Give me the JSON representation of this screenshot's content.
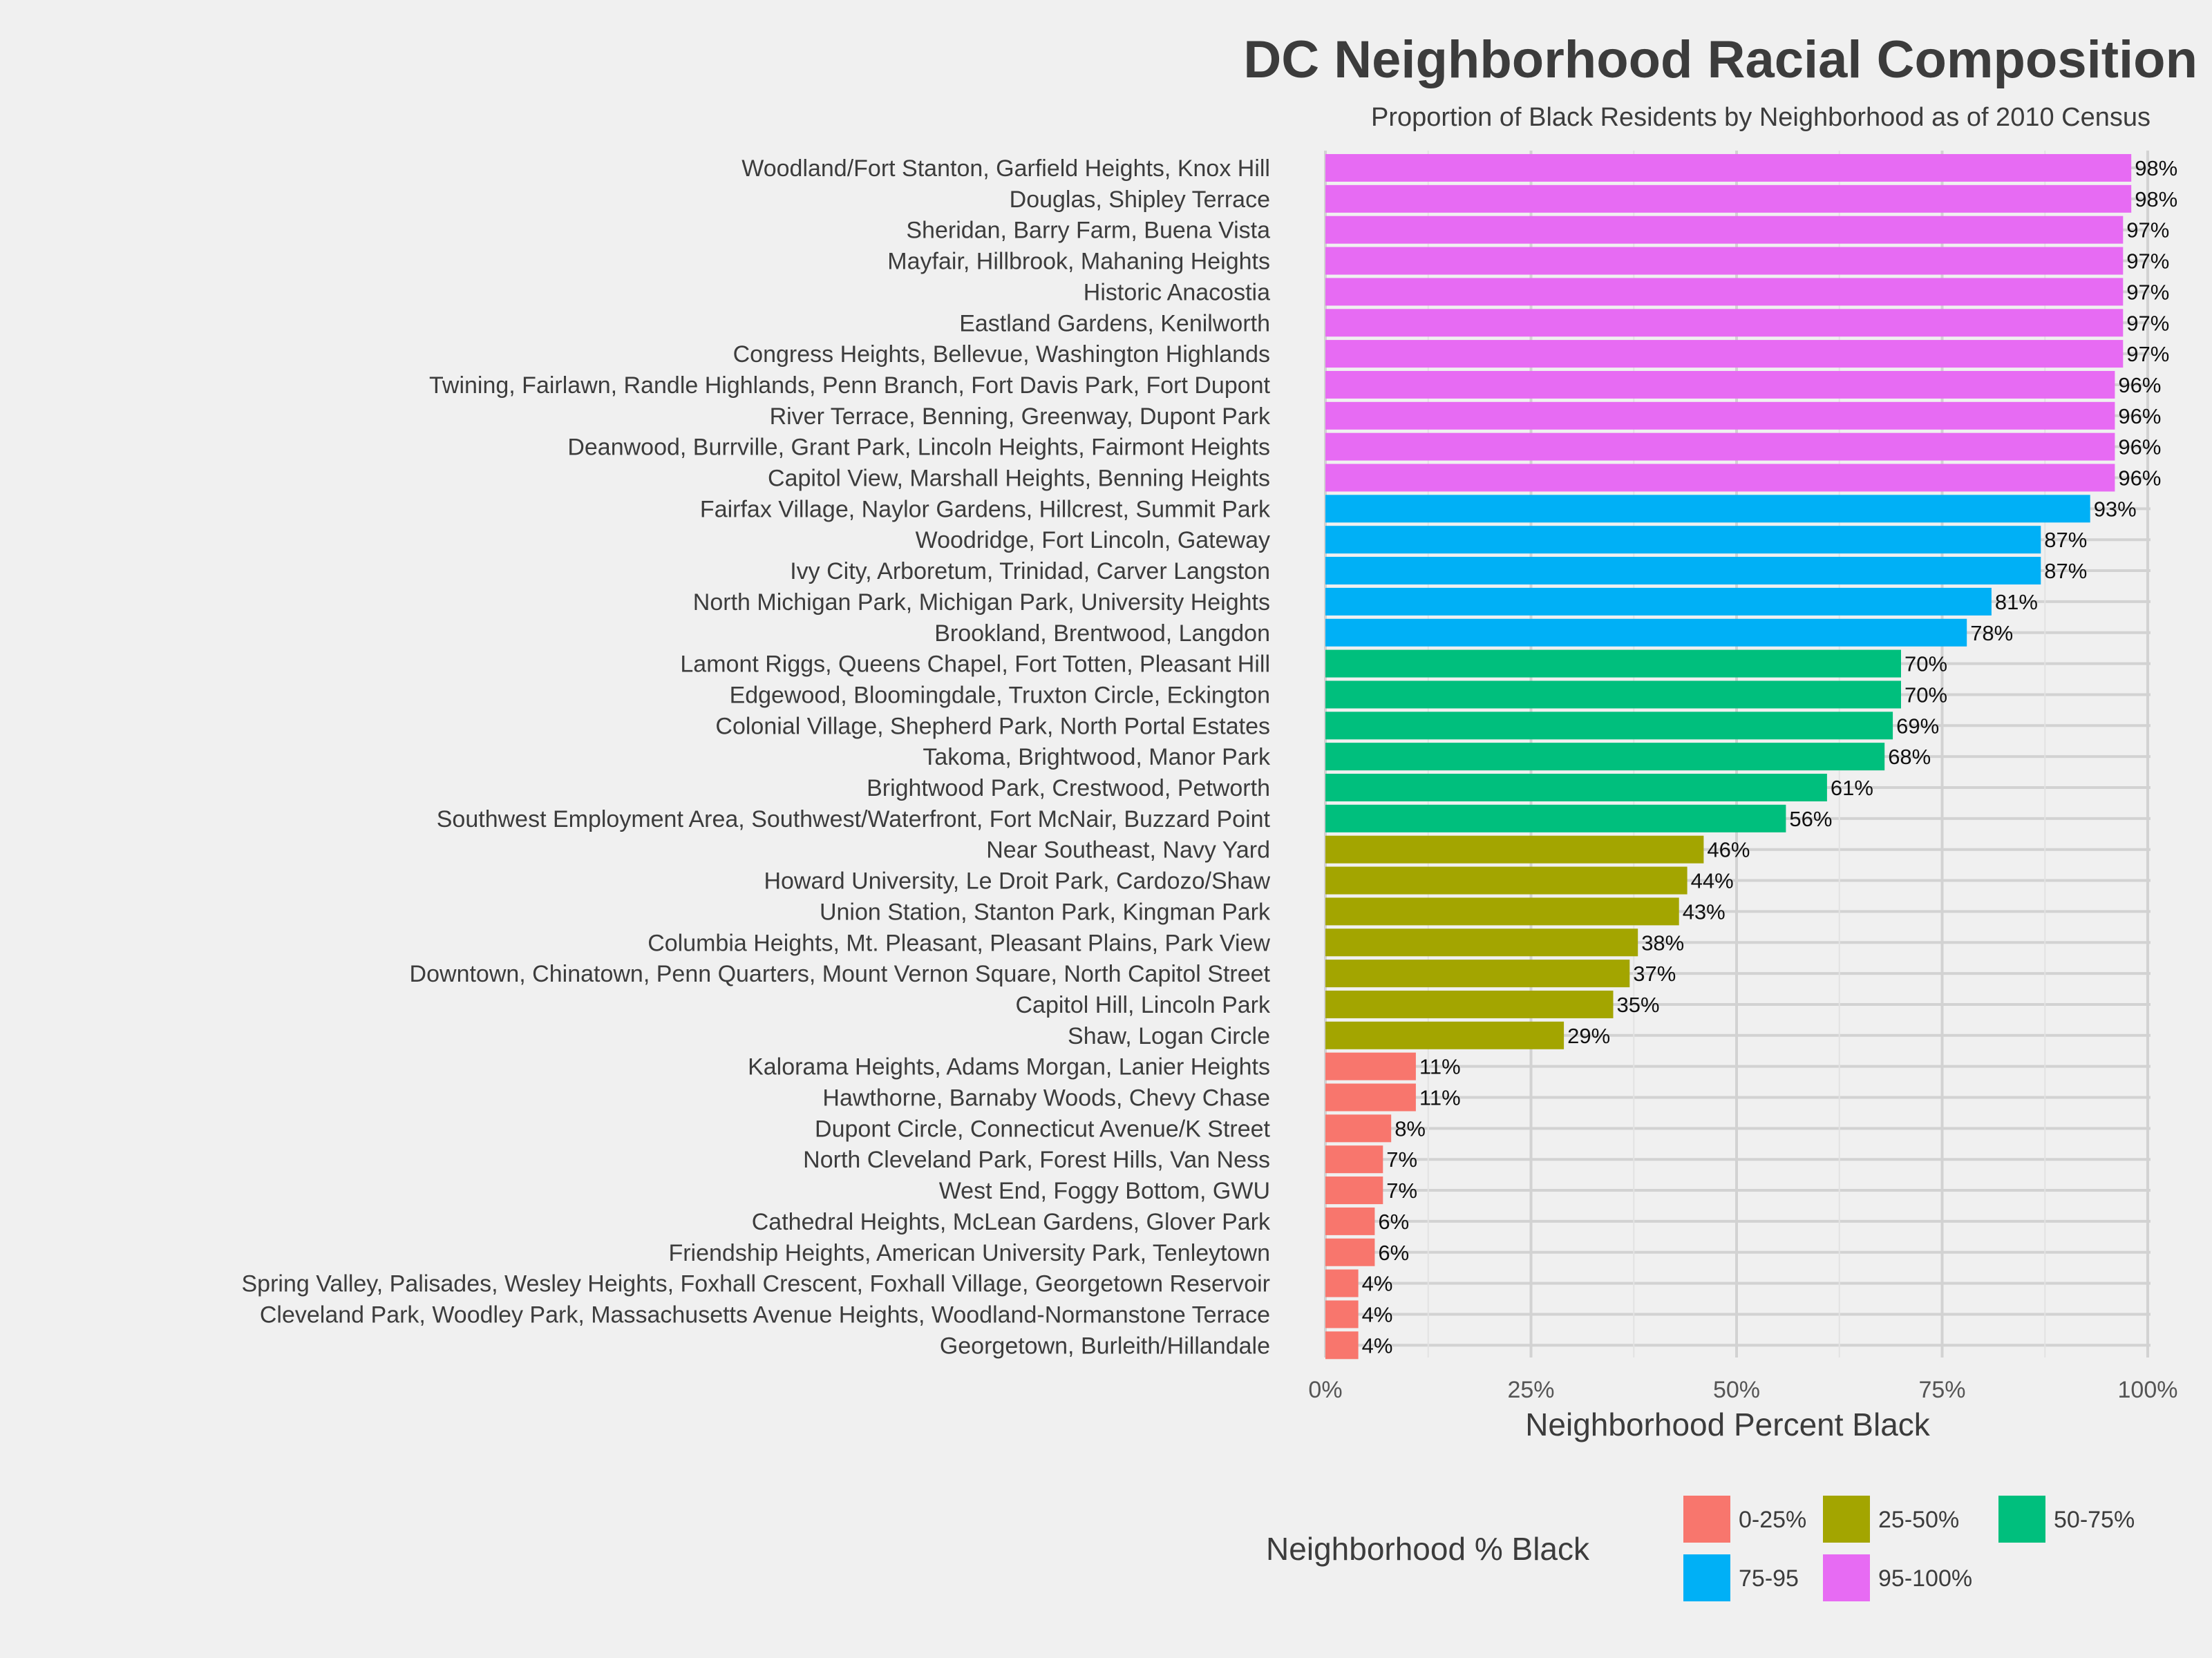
{
  "chart_data": {
    "type": "bar",
    "orientation": "horizontal",
    "title": "DC Neighborhood Racial Composition",
    "subtitle": "Proportion of Black Residents by Neighborhood as of 2010 Census",
    "xlabel": "Neighborhood Percent Black",
    "ylabel": "",
    "xlim": [
      0,
      1
    ],
    "xticks": [
      "0%",
      "25%",
      "50%",
      "75%",
      "100%"
    ],
    "xtick_values": [
      0,
      0.25,
      0.5,
      0.75,
      1.0
    ],
    "legend": {
      "title": "Neighborhood % Black",
      "placement": "bottom",
      "entries": [
        {
          "label": "0-25%",
          "color": "#f8766d"
        },
        {
          "label": "25-50%",
          "color": "#a3a500"
        },
        {
          "label": "50-75%",
          "color": "#00bf7d"
        },
        {
          "label": "75-95",
          "color": "#00b0f6"
        },
        {
          "label": "95-100%",
          "color": "#e76bf3"
        }
      ]
    },
    "bars": [
      {
        "name": "Woodland/Fort Stanton, Garfield Heights, Knox Hill",
        "value": 0.98,
        "label": "98%",
        "group": "95-100%"
      },
      {
        "name": "Douglas, Shipley Terrace",
        "value": 0.98,
        "label": "98%",
        "group": "95-100%"
      },
      {
        "name": "Sheridan, Barry Farm, Buena Vista",
        "value": 0.97,
        "label": "97%",
        "group": "95-100%"
      },
      {
        "name": "Mayfair, Hillbrook, Mahaning Heights",
        "value": 0.97,
        "label": "97%",
        "group": "95-100%"
      },
      {
        "name": "Historic Anacostia",
        "value": 0.97,
        "label": "97%",
        "group": "95-100%"
      },
      {
        "name": "Eastland Gardens, Kenilworth",
        "value": 0.97,
        "label": "97%",
        "group": "95-100%"
      },
      {
        "name": "Congress Heights, Bellevue, Washington Highlands",
        "value": 0.97,
        "label": "97%",
        "group": "95-100%"
      },
      {
        "name": "Twining, Fairlawn, Randle Highlands, Penn Branch, Fort Davis Park, Fort Dupont",
        "value": 0.96,
        "label": "96%",
        "group": "95-100%"
      },
      {
        "name": "River Terrace, Benning, Greenway, Dupont Park",
        "value": 0.96,
        "label": "96%",
        "group": "95-100%"
      },
      {
        "name": "Deanwood, Burrville, Grant Park, Lincoln Heights, Fairmont Heights",
        "value": 0.96,
        "label": "96%",
        "group": "95-100%"
      },
      {
        "name": "Capitol View, Marshall Heights, Benning Heights",
        "value": 0.96,
        "label": "96%",
        "group": "95-100%"
      },
      {
        "name": "Fairfax Village, Naylor Gardens, Hillcrest, Summit Park",
        "value": 0.93,
        "label": "93%",
        "group": "75-95"
      },
      {
        "name": "Woodridge, Fort Lincoln, Gateway",
        "value": 0.87,
        "label": "87%",
        "group": "75-95"
      },
      {
        "name": "Ivy City, Arboretum, Trinidad, Carver Langston",
        "value": 0.87,
        "label": "87%",
        "group": "75-95"
      },
      {
        "name": "North Michigan Park, Michigan Park, University Heights",
        "value": 0.81,
        "label": "81%",
        "group": "75-95"
      },
      {
        "name": "Brookland, Brentwood, Langdon",
        "value": 0.78,
        "label": "78%",
        "group": "75-95"
      },
      {
        "name": "Lamont Riggs, Queens Chapel, Fort Totten, Pleasant Hill",
        "value": 0.7,
        "label": "70%",
        "group": "50-75%"
      },
      {
        "name": "Edgewood, Bloomingdale, Truxton Circle, Eckington",
        "value": 0.7,
        "label": "70%",
        "group": "50-75%"
      },
      {
        "name": "Colonial Village, Shepherd Park, North Portal Estates",
        "value": 0.69,
        "label": "69%",
        "group": "50-75%"
      },
      {
        "name": "Takoma, Brightwood, Manor Park",
        "value": 0.68,
        "label": "68%",
        "group": "50-75%"
      },
      {
        "name": "Brightwood Park, Crestwood, Petworth",
        "value": 0.61,
        "label": "61%",
        "group": "50-75%"
      },
      {
        "name": "Southwest Employment Area, Southwest/Waterfront, Fort McNair, Buzzard Point",
        "value": 0.56,
        "label": "56%",
        "group": "50-75%"
      },
      {
        "name": "Near Southeast, Navy Yard",
        "value": 0.46,
        "label": "46%",
        "group": "25-50%"
      },
      {
        "name": "Howard University, Le Droit Park, Cardozo/Shaw",
        "value": 0.44,
        "label": "44%",
        "group": "25-50%"
      },
      {
        "name": "Union Station, Stanton Park, Kingman Park",
        "value": 0.43,
        "label": "43%",
        "group": "25-50%"
      },
      {
        "name": "Columbia Heights, Mt. Pleasant, Pleasant Plains, Park View",
        "value": 0.38,
        "label": "38%",
        "group": "25-50%"
      },
      {
        "name": "Downtown, Chinatown, Penn Quarters, Mount Vernon Square, North Capitol Street",
        "value": 0.37,
        "label": "37%",
        "group": "25-50%"
      },
      {
        "name": "Capitol Hill, Lincoln Park",
        "value": 0.35,
        "label": "35%",
        "group": "25-50%"
      },
      {
        "name": "Shaw, Logan Circle",
        "value": 0.29,
        "label": "29%",
        "group": "25-50%"
      },
      {
        "name": "Kalorama Heights, Adams Morgan, Lanier Heights",
        "value": 0.11,
        "label": "11%",
        "group": "0-25%"
      },
      {
        "name": "Hawthorne, Barnaby Woods, Chevy Chase",
        "value": 0.11,
        "label": "11%",
        "group": "0-25%"
      },
      {
        "name": "Dupont Circle, Connecticut Avenue/K Street",
        "value": 0.08,
        "label": "8%",
        "group": "0-25%"
      },
      {
        "name": "North Cleveland Park, Forest Hills, Van Ness",
        "value": 0.07,
        "label": "7%",
        "group": "0-25%"
      },
      {
        "name": "West End, Foggy Bottom, GWU",
        "value": 0.07,
        "label": "7%",
        "group": "0-25%"
      },
      {
        "name": "Cathedral Heights, McLean Gardens, Glover Park",
        "value": 0.06,
        "label": "6%",
        "group": "0-25%"
      },
      {
        "name": "Friendship Heights, American University Park, Tenleytown",
        "value": 0.06,
        "label": "6%",
        "group": "0-25%"
      },
      {
        "name": "Spring Valley, Palisades, Wesley Heights, Foxhall Crescent, Foxhall Village, Georgetown Reservoir",
        "value": 0.04,
        "label": "4%",
        "group": "0-25%"
      },
      {
        "name": "Cleveland Park, Woodley Park, Massachusetts Avenue Heights, Woodland-Normanstone Terrace",
        "value": 0.04,
        "label": "4%",
        "group": "0-25%"
      },
      {
        "name": "Georgetown, Burleith/Hillandale",
        "value": 0.04,
        "label": "4%",
        "group": "0-25%"
      }
    ]
  }
}
